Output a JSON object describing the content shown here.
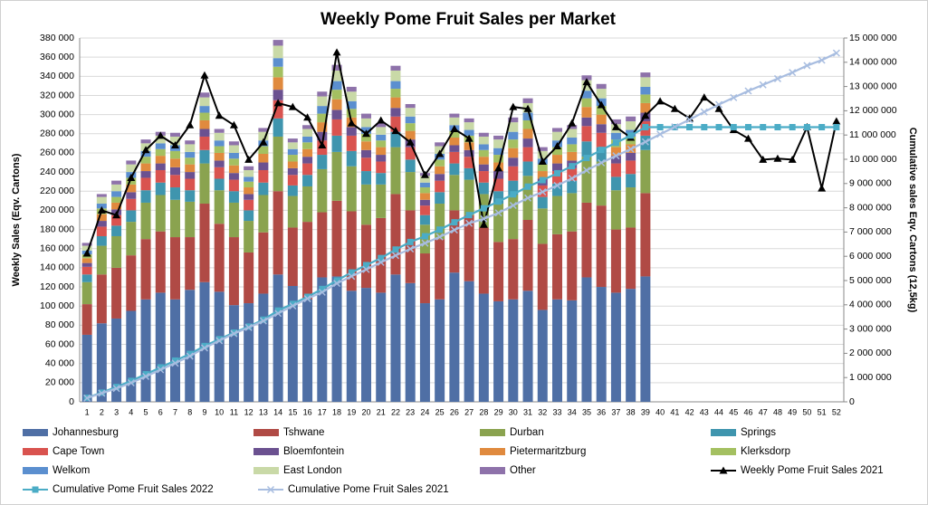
{
  "chart_data": {
    "type": "bar",
    "title": "Weekly Pome Fruit Sales per Market",
    "ylabel": "Weekly Sales (Eqv. Cartons)",
    "y2label": "Cumulative sales Eqv. Cartons (12,5kg)",
    "categories": [
      "1",
      "2",
      "3",
      "4",
      "5",
      "6",
      "7",
      "8",
      "9",
      "10",
      "11",
      "12",
      "13",
      "14",
      "15",
      "16",
      "17",
      "18",
      "19",
      "20",
      "21",
      "22",
      "23",
      "24",
      "25",
      "26",
      "27",
      "28",
      "29",
      "30",
      "31",
      "32",
      "33",
      "34",
      "35",
      "36",
      "37",
      "38",
      "39",
      "40",
      "41",
      "42",
      "43",
      "44",
      "45",
      "46",
      "47",
      "48",
      "49",
      "50",
      "51",
      "52"
    ],
    "stacked": true,
    "ylim": [
      0,
      380000
    ],
    "yticks": [
      0,
      {
        "value": 20000,
        "label": "20 000"
      },
      {
        "value": 40000,
        "label": "40 000"
      },
      {
        "value": 60000,
        "label": "60 000"
      },
      {
        "value": 80000,
        "label": "80 000"
      },
      {
        "value": 100000,
        "label": "100 000"
      },
      {
        "value": 120000,
        "label": "120 000"
      },
      {
        "value": 140000,
        "label": "140 000"
      },
      {
        "value": 160000,
        "label": "160 000"
      },
      {
        "value": 180000,
        "label": "180 000"
      },
      {
        "value": 200000,
        "label": "200 000"
      },
      {
        "value": 220000,
        "label": "220 000"
      },
      {
        "value": 240000,
        "label": "240 000"
      },
      {
        "value": 260000,
        "label": "260 000"
      },
      {
        "value": 280000,
        "label": "280 000"
      },
      {
        "value": 300000,
        "label": "300 000"
      },
      {
        "value": 320000,
        "label": "320 000"
      },
      {
        "value": 340000,
        "label": "340 000"
      },
      {
        "value": 360000,
        "label": "360 000"
      },
      {
        "value": 380000,
        "label": "380 000"
      }
    ],
    "y2lim": [
      0,
      15000000
    ],
    "y2ticks": [
      0,
      {
        "value": 1000000,
        "label": "1 000 000"
      },
      {
        "value": 2000000,
        "label": "2 000 000"
      },
      {
        "value": 3000000,
        "label": "3 000 000"
      },
      {
        "value": 4000000,
        "label": "4 000 000"
      },
      {
        "value": 5000000,
        "label": "5 000 000"
      },
      {
        "value": 6000000,
        "label": "6 000 000"
      },
      {
        "value": 7000000,
        "label": "7 000 000"
      },
      {
        "value": 8000000,
        "label": "8 000 000"
      },
      {
        "value": 9000000,
        "label": "9 000 000"
      },
      {
        "value": 10000000,
        "label": "10 000 000"
      },
      {
        "value": 11000000,
        "label": "11 000 000"
      },
      {
        "value": 12000000,
        "label": "12 000 000"
      },
      {
        "value": 13000000,
        "label": "13 000 000"
      },
      {
        "value": 14000000,
        "label": "14 000 000"
      },
      {
        "value": 15000000,
        "label": "15 000 000"
      }
    ],
    "grid": true,
    "legend": "bottom",
    "series": [
      {
        "name": "Johannesburg",
        "color": "#4f6fa5",
        "type": "bar",
        "values": [
          70000,
          82000,
          87000,
          95000,
          107000,
          114000,
          107000,
          117000,
          125000,
          115000,
          101000,
          103000,
          113000,
          133000,
          121000,
          107000,
          130000,
          131000,
          116000,
          119000,
          114000,
          133000,
          124000,
          103000,
          107000,
          135000,
          126000,
          113000,
          105000,
          107000,
          116000,
          96000,
          107000,
          106000,
          130000,
          120000,
          114000,
          118000,
          131000,
          null,
          null,
          null,
          null,
          null,
          null,
          null,
          null,
          null,
          null,
          null,
          null,
          null
        ]
      },
      {
        "name": "Tshwane",
        "color": "#b04a45",
        "type": "bar",
        "values": [
          32000,
          51000,
          53000,
          58000,
          63000,
          64000,
          65000,
          55000,
          82000,
          71000,
          71000,
          53000,
          64000,
          87000,
          61000,
          81000,
          68000,
          79000,
          83000,
          66000,
          78000,
          84000,
          76000,
          52000,
          63000,
          65000,
          69000,
          69000,
          62000,
          63000,
          74000,
          69000,
          68000,
          72000,
          78000,
          85000,
          66000,
          64000,
          87000,
          null,
          null,
          null,
          null,
          null,
          null,
          null,
          null,
          null,
          null,
          null,
          null,
          null
        ]
      },
      {
        "name": "Durban",
        "color": "#8aa34f",
        "type": "bar",
        "values": [
          23000,
          30000,
          33000,
          35000,
          38000,
          38000,
          39000,
          37000,
          42000,
          35000,
          36000,
          33000,
          39000,
          57000,
          33000,
          37000,
          45000,
          51000,
          47000,
          42000,
          35000,
          49000,
          40000,
          30000,
          37000,
          37000,
          37000,
          35000,
          40000,
          46000,
          46000,
          37000,
          40000,
          40000,
          48000,
          46000,
          41000,
          42000,
          45000,
          null,
          null,
          null,
          null,
          null,
          null,
          null,
          null,
          null,
          null,
          null,
          null,
          null
        ]
      },
      {
        "name": "Springs",
        "color": "#3f95ae",
        "type": "bar",
        "values": [
          8000,
          10000,
          11000,
          12000,
          13000,
          13000,
          13000,
          12000,
          14000,
          12000,
          12000,
          11000,
          13000,
          19000,
          11000,
          12000,
          15000,
          17000,
          16000,
          14000,
          12000,
          16000,
          13000,
          10000,
          12000,
          12000,
          12000,
          12000,
          13000,
          15000,
          15000,
          12000,
          13000,
          13000,
          16000,
          15000,
          14000,
          14000,
          15000,
          null,
          null,
          null,
          null,
          null,
          null,
          null,
          null,
          null,
          null,
          null,
          null,
          null
        ]
      },
      {
        "name": "Cape Town",
        "color": "#d9534f",
        "type": "bar",
        "values": [
          8000,
          10000,
          11000,
          12000,
          13000,
          13000,
          13000,
          12000,
          14000,
          12000,
          12000,
          11000,
          13000,
          19000,
          11000,
          12000,
          15000,
          17000,
          16000,
          14000,
          12000,
          16000,
          13000,
          10000,
          12000,
          12000,
          12000,
          12000,
          13000,
          15000,
          15000,
          12000,
          13000,
          13000,
          16000,
          15000,
          14000,
          14000,
          15000,
          null,
          null,
          null,
          null,
          null,
          null,
          null,
          null,
          null,
          null,
          null,
          null,
          null
        ]
      },
      {
        "name": "Bloemfontein",
        "color": "#6b5190",
        "type": "bar",
        "values": [
          4000,
          6000,
          6000,
          7000,
          7000,
          7000,
          8000,
          7000,
          8000,
          7000,
          7000,
          6000,
          8000,
          11000,
          7000,
          7000,
          9000,
          10000,
          9000,
          8000,
          7000,
          9000,
          8000,
          6000,
          7000,
          7000,
          7000,
          7000,
          8000,
          9000,
          9000,
          7000,
          8000,
          8000,
          9000,
          9000,
          8000,
          8000,
          9000,
          null,
          null,
          null,
          null,
          null,
          null,
          null,
          null,
          null,
          null,
          null,
          null,
          null
        ]
      },
      {
        "name": "Pietermaritzburg",
        "color": "#e08a3e",
        "type": "bar",
        "values": [
          5000,
          7000,
          7000,
          8000,
          8000,
          8000,
          9000,
          8000,
          9000,
          8000,
          8000,
          7000,
          9000,
          13000,
          7000,
          8000,
          10000,
          11000,
          10000,
          9000,
          8000,
          11000,
          9000,
          7000,
          8000,
          8000,
          8000,
          8000,
          9000,
          10000,
          10000,
          8000,
          9000,
          9000,
          11000,
          10000,
          9000,
          9000,
          10000,
          null,
          null,
          null,
          null,
          null,
          null,
          null,
          null,
          null,
          null,
          null,
          null,
          null
        ]
      },
      {
        "name": "Klerksdorp",
        "color": "#a4c061",
        "type": "bar",
        "values": [
          4000,
          6000,
          6000,
          7000,
          7000,
          7000,
          8000,
          7000,
          8000,
          7000,
          7000,
          6000,
          8000,
          11000,
          7000,
          7000,
          9000,
          10000,
          9000,
          8000,
          7000,
          9000,
          8000,
          6000,
          7000,
          7000,
          7000,
          7000,
          8000,
          9000,
          9000,
          7000,
          8000,
          8000,
          9000,
          9000,
          8000,
          8000,
          9000,
          null,
          null,
          null,
          null,
          null,
          null,
          null,
          null,
          null,
          null,
          null,
          null,
          null
        ]
      },
      {
        "name": "Welkom",
        "color": "#5b8fcf",
        "type": "bar",
        "values": [
          4000,
          5000,
          6000,
          6000,
          6000,
          6000,
          6000,
          6000,
          7000,
          6000,
          6000,
          5000,
          6000,
          9000,
          6000,
          6000,
          8000,
          9000,
          8000,
          7000,
          6000,
          8000,
          7000,
          5000,
          6000,
          6000,
          6000,
          6000,
          7000,
          8000,
          8000,
          6000,
          7000,
          7000,
          8000,
          8000,
          7000,
          7000,
          8000,
          null,
          null,
          null,
          null,
          null,
          null,
          null,
          null,
          null,
          null,
          null,
          null,
          null
        ]
      },
      {
        "name": "East London",
        "color": "#c9d9a7",
        "type": "bar",
        "values": [
          5000,
          7000,
          7000,
          8000,
          8000,
          8000,
          9000,
          8000,
          9000,
          8000,
          8000,
          7000,
          9000,
          13000,
          7000,
          8000,
          10000,
          11000,
          10000,
          9000,
          8000,
          11000,
          9000,
          7000,
          8000,
          8000,
          8000,
          8000,
          9000,
          10000,
          10000,
          8000,
          9000,
          9000,
          11000,
          10000,
          9000,
          9000,
          10000,
          null,
          null,
          null,
          null,
          null,
          null,
          null,
          null,
          null,
          null,
          null,
          null,
          null
        ]
      },
      {
        "name": "Other",
        "color": "#8e72aa",
        "type": "bar",
        "values": [
          3000,
          3000,
          4000,
          4000,
          4000,
          4000,
          4000,
          4000,
          5000,
          4000,
          4000,
          4000,
          4000,
          6000,
          4000,
          4000,
          5000,
          6000,
          5000,
          5000,
          4000,
          5000,
          4000,
          3000,
          4000,
          4000,
          4000,
          4000,
          4000,
          5000,
          5000,
          4000,
          4000,
          4000,
          5000,
          5000,
          5000,
          5000,
          5000,
          null,
          null,
          null,
          null,
          null,
          null,
          null,
          null,
          null,
          null,
          null,
          null,
          null
        ]
      },
      {
        "name": "Weekly Pome Fruit Sales 2021",
        "color": "#000000",
        "type": "line",
        "marker": "triangle",
        "values": [
          155000,
          200000,
          195000,
          234000,
          263000,
          278000,
          268000,
          289000,
          341000,
          299000,
          289000,
          253000,
          271000,
          312000,
          308000,
          297000,
          268000,
          365000,
          291000,
          280000,
          294000,
          283000,
          271000,
          237000,
          259000,
          285000,
          275000,
          185000,
          244000,
          308000,
          306000,
          251000,
          267000,
          291000,
          334000,
          310000,
          287000,
          276000,
          299000,
          314000,
          306000,
          296000,
          318000,
          306000,
          284000,
          275000,
          253000,
          254000,
          253000,
          287000,
          223000,
          293000
        ]
      },
      {
        "name": "Cumulative Pome Fruit Sales 2022",
        "color": "#4bacc6",
        "type": "line",
        "marker": "square",
        "axis": "y2",
        "values": [
          165000,
          380000,
          612000,
          862000,
          1137000,
          1420000,
          1700000,
          1975000,
          2300000,
          2582000,
          2854000,
          3101000,
          3386000,
          3763000,
          4038000,
          4328000,
          4651000,
          5004000,
          5334000,
          5636000,
          5926000,
          6278000,
          6590000,
          6827000,
          7099000,
          7401000,
          7700000,
          7980000,
          8257000,
          8554000,
          8872000,
          9139000,
          9424000,
          9714000,
          10054000,
          10387000,
          10682000,
          10980000,
          11324000,
          11324000,
          11324000,
          11324000,
          11324000,
          11324000,
          11324000,
          11324000,
          11324000,
          11324000,
          11324000,
          11324000,
          11324000,
          11324000
        ]
      },
      {
        "name": "Cumulative Pome Fruit Sales 2021",
        "color": "#a8bde0",
        "type": "line",
        "marker": "x",
        "axis": "y2",
        "values": [
          155000,
          355000,
          550000,
          784000,
          1047000,
          1325000,
          1593000,
          1882000,
          2223000,
          2522000,
          2811000,
          3064000,
          3335000,
          3647000,
          3955000,
          4252000,
          4520000,
          4885000,
          5176000,
          5456000,
          5750000,
          6033000,
          6304000,
          6541000,
          6800000,
          7085000,
          7360000,
          7545000,
          7789000,
          8097000,
          8403000,
          8654000,
          8921000,
          9212000,
          9546000,
          9856000,
          10143000,
          10419000,
          10718000,
          11032000,
          11338000,
          11634000,
          11952000,
          12258000,
          12542000,
          12817000,
          13070000,
          13324000,
          13577000,
          13864000,
          14087000,
          14380000
        ]
      }
    ]
  }
}
